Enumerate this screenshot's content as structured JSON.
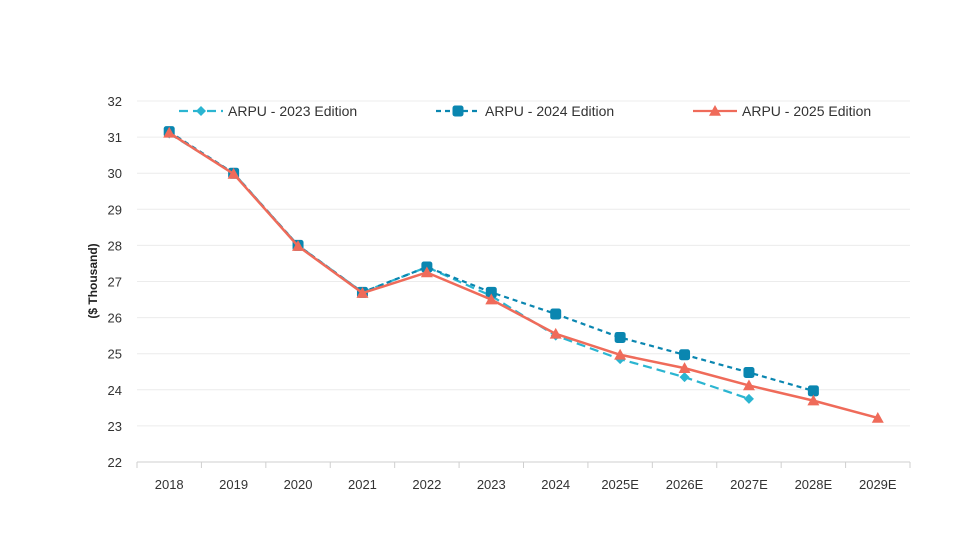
{
  "chart_data": {
    "type": "line",
    "title": "",
    "xlabel": "",
    "ylabel": "($ Thousand)",
    "ylim": [
      22,
      32
    ],
    "yticks": [
      22,
      23,
      24,
      25,
      26,
      27,
      28,
      29,
      30,
      31,
      32
    ],
    "grid": true,
    "legend_position": "top",
    "categories": [
      "2018",
      "2019",
      "2020",
      "2021",
      "2022",
      "2023",
      "2024",
      "2025E",
      "2026E",
      "2027E",
      "2028E",
      "2029E"
    ],
    "series": [
      {
        "name": "ARPU - 2023 Edition",
        "color": "#2bb5d1",
        "dash": "dashed",
        "marker": "diamond",
        "values": [
          31.1,
          30.0,
          28.0,
          26.7,
          27.4,
          26.6,
          25.5,
          24.85,
          24.35,
          23.75,
          null,
          null
        ]
      },
      {
        "name": "ARPU - 2024 Edition",
        "color": "#0a86b0",
        "dash": "dotted",
        "marker": "square",
        "values": [
          31.15,
          30.0,
          28.0,
          26.7,
          27.4,
          26.7,
          26.1,
          25.45,
          24.97,
          24.48,
          23.97,
          null
        ]
      },
      {
        "name": "ARPU - 2025 Edition",
        "color": "#ef6b5a",
        "dash": "solid",
        "marker": "triangle",
        "values": [
          31.12,
          29.98,
          27.98,
          26.68,
          27.25,
          26.5,
          25.55,
          24.97,
          24.6,
          24.12,
          23.7,
          23.22
        ]
      }
    ]
  }
}
